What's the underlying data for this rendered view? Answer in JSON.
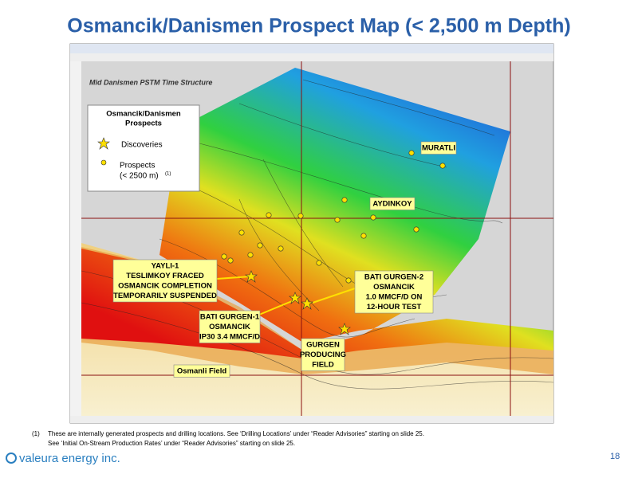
{
  "header": {
    "title": "Osmancik/Danismen Prospect Map (< 2,500 m Depth)"
  },
  "map": {
    "title": "Mid Danismen PSTM Time Structure",
    "legend": {
      "title": [
        "Osmancik/Danismen",
        "Prospects"
      ],
      "discoveries": "Discoveries",
      "prospects": [
        "Prospects",
        "(< 2500 m)"
      ],
      "note": "(1)"
    },
    "labels": {
      "muratli": [
        "MURATLI"
      ],
      "aydinkoy": [
        "AYDINKOY"
      ],
      "yayli": [
        "YAYLI-1",
        "TESLIMKOY FRACED",
        "OSMANCIK COMPLETION",
        "TEMPORARILY SUSPENDED"
      ],
      "batigurgen2": [
        "BATI GURGEN-2",
        "OSMANCIK",
        "1.0 MMCF/D ON",
        "12-HOUR TEST"
      ],
      "batigurgen1": [
        "BATI GURGEN-1",
        "OSMANCIK",
        "IP30 3.4 MMCF/D"
      ],
      "gurgen": [
        "GURGEN",
        "PRODUCING",
        "FIELD"
      ],
      "osmanli": [
        "Osmanli Field"
      ]
    }
  },
  "footnote": {
    "marker": "(1)",
    "lines": [
      "These are internally generated prospects and drilling locations. See ‘Drilling Locations’ under “Reader Advisories” starting on slide 25.",
      "See ‘Initial On-Stream Production Rates’ under “Reader Advisories” starting on slide 25."
    ]
  },
  "footer": {
    "logo": "valeura energy inc.",
    "page": "18"
  }
}
